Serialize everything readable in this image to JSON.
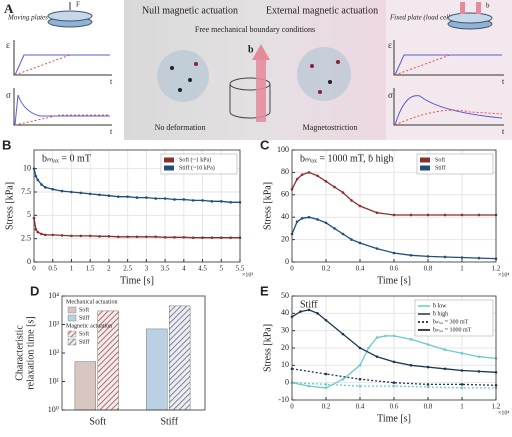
{
  "panel_a": {
    "label": "A",
    "left_caption": "Moving plates",
    "left_axes": [
      {
        "y": "ε",
        "x": "t"
      },
      {
        "y": "σ",
        "x": "t"
      }
    ],
    "null_title": "Null magnetic actuation",
    "external_title": "External magnetic actuation",
    "subtitle": "Free mechanical boundary conditions",
    "field_label": "b",
    "left_state": "No deformation",
    "right_state": "Magnetostriction",
    "right_caption": "Fixed plate (load cell)",
    "right_axes": [
      {
        "y": "ε",
        "x": "t"
      },
      {
        "y": "σ",
        "x": "t"
      }
    ],
    "force_label": "F",
    "icon_field_label": "b"
  },
  "chart_data": [
    {
      "type": "line",
      "panel_label": "B",
      "title": "bₘₐₓ = 0 mT",
      "x_label": "Time [s]",
      "y_label": "Stress [kPa]",
      "x_multiplier": "×10³",
      "xlim": [
        0,
        5.5
      ],
      "xticks": [
        0,
        0.5,
        1,
        1.5,
        2,
        2.5,
        3,
        3.5,
        4,
        4.5,
        5,
        5.5
      ],
      "ylim": [
        0,
        12
      ],
      "yticks": [
        0,
        2.5,
        5,
        7.5,
        10
      ],
      "grid": true,
      "series": [
        {
          "name": "Soft (~1 kPa)",
          "color": "#8b2f2f",
          "x": [
            0,
            0.05,
            0.1,
            0.2,
            0.3,
            0.5,
            0.75,
            1,
            1.25,
            1.5,
            1.75,
            2,
            2.25,
            2.5,
            2.75,
            3,
            3.25,
            3.5,
            3.75,
            4,
            4.25,
            4.5,
            4.75,
            5,
            5.25,
            5.5
          ],
          "values": [
            4.7,
            3.5,
            3.2,
            3,
            2.9,
            2.9,
            2.85,
            2.8,
            2.8,
            2.8,
            2.75,
            2.75,
            2.7,
            2.7,
            2.7,
            2.7,
            2.7,
            2.65,
            2.65,
            2.65,
            2.6,
            2.6,
            2.6,
            2.6,
            2.6,
            2.6
          ]
        },
        {
          "name": "Stiff (~10 kPa)",
          "color": "#1f4f7a",
          "x": [
            0,
            0.05,
            0.1,
            0.2,
            0.3,
            0.5,
            0.75,
            1,
            1.25,
            1.5,
            1.75,
            2,
            2.25,
            2.5,
            2.75,
            3,
            3.25,
            3.5,
            3.75,
            4,
            4.25,
            4.5,
            4.75,
            5,
            5.25,
            5.5
          ],
          "values": [
            10,
            9.2,
            8.8,
            8.3,
            8,
            7.8,
            7.6,
            7.5,
            7.4,
            7.3,
            7.2,
            7.1,
            7,
            7,
            6.9,
            6.9,
            6.8,
            6.8,
            6.7,
            6.7,
            6.6,
            6.6,
            6.5,
            6.5,
            6.4,
            6.4
          ]
        }
      ]
    },
    {
      "type": "line",
      "panel_label": "C",
      "title": "bₘₐₓ = 1000 mT, ḃ high",
      "x_label": "Time [s]",
      "y_label": "Stress [kPa]",
      "x_multiplier": "×10⁴",
      "xlim": [
        0,
        1.2
      ],
      "xticks": [
        0,
        0.2,
        0.4,
        0.6,
        0.8,
        1,
        1.2
      ],
      "ylim": [
        0,
        100
      ],
      "yticks": [
        0,
        20,
        40,
        60,
        80,
        100
      ],
      "grid": true,
      "series": [
        {
          "name": "Soft",
          "color": "#8b2f2f",
          "x": [
            0,
            0.03,
            0.06,
            0.1,
            0.15,
            0.2,
            0.25,
            0.3,
            0.35,
            0.4,
            0.5,
            0.6,
            0.7,
            0.8,
            0.9,
            1,
            1.1,
            1.2
          ],
          "values": [
            65,
            74,
            78,
            80,
            77,
            72,
            67,
            62,
            55,
            50,
            44,
            42,
            42,
            42,
            42,
            42,
            42,
            42
          ]
        },
        {
          "name": "Stiff",
          "color": "#1f4f7a",
          "x": [
            0,
            0.03,
            0.06,
            0.1,
            0.15,
            0.2,
            0.25,
            0.3,
            0.35,
            0.4,
            0.5,
            0.6,
            0.7,
            0.8,
            0.9,
            1,
            1.1,
            1.2
          ],
          "values": [
            25,
            36,
            39,
            40,
            38,
            35,
            30,
            25,
            20,
            17,
            12,
            8,
            6,
            5,
            4.5,
            4,
            3.5,
            3
          ]
        }
      ]
    },
    {
      "type": "bar",
      "panel_label": "D",
      "y_label": [
        "Characteristic",
        "relaxation time [s]"
      ],
      "categories": [
        "Soft",
        "Stiff"
      ],
      "log_y": true,
      "ylim": [
        1,
        10000
      ],
      "yticks": [
        {
          "value": 1,
          "label": "10⁰"
        },
        {
          "value": 10,
          "label": "10¹"
        },
        {
          "value": 100,
          "label": "10²"
        },
        {
          "value": 1000,
          "label": "10³"
        },
        {
          "value": 10000,
          "label": "10⁴"
        }
      ],
      "series": [
        {
          "hatch": false,
          "colors": [
            "#d8c6c0",
            "#b9d1e2"
          ],
          "values": [
            50,
            700
          ]
        },
        {
          "hatch": true,
          "colors": [
            "#a34a4a",
            "#4a6f9a"
          ],
          "values": [
            3000,
            4500
          ]
        }
      ],
      "legend_groups": [
        {
          "title": "Mechanical actuation",
          "items": [
            "Soft",
            "Stiff"
          ]
        },
        {
          "title": "Magnetic actuation",
          "items": [
            "Soft",
            "Stiff"
          ]
        }
      ]
    },
    {
      "type": "line",
      "panel_label": "E",
      "title": "Stiff",
      "x_label": "Time [s]",
      "y_label": "Stress [kPa]",
      "x_multiplier": "×10⁴",
      "xlim": [
        0,
        1.2
      ],
      "xticks": [
        0,
        0.2,
        0.4,
        0.6,
        0.8,
        1,
        1.2
      ],
      "ylim": [
        -10,
        50
      ],
      "yticks": [
        -10,
        0,
        10,
        20,
        30,
        40,
        50
      ],
      "grid": true,
      "series": [
        {
          "color": "#6cc9cc",
          "x": [
            0,
            0.1,
            0.2,
            0.3,
            0.4,
            0.45,
            0.5,
            0.55,
            0.6,
            0.7,
            0.8,
            0.9,
            1,
            1.1,
            1.2
          ],
          "values": [
            0,
            -2,
            -3,
            2,
            10,
            20,
            26,
            27,
            27,
            25,
            22,
            19,
            17,
            15,
            14
          ]
        },
        {
          "color": "#1c3550",
          "x": [
            0,
            0.05,
            0.1,
            0.15,
            0.2,
            0.3,
            0.4,
            0.5,
            0.6,
            0.7,
            0.8,
            0.9,
            1,
            1.1,
            1.2
          ],
          "values": [
            38,
            41,
            42,
            40,
            36,
            28,
            20,
            15,
            12,
            10,
            9,
            8,
            7,
            6.5,
            6
          ]
        },
        {
          "color": "#6cc9cc",
          "dash": "2 2",
          "x": [
            0,
            0.2,
            0.4,
            0.6,
            0.8,
            1,
            1.2
          ],
          "values": [
            0,
            -1,
            -2,
            -2,
            -2.5,
            -3,
            -3
          ]
        },
        {
          "color": "#1c3550",
          "dash": "2 2",
          "x": [
            0,
            0.2,
            0.4,
            0.6,
            0.8,
            1,
            1.2
          ],
          "values": [
            8,
            5,
            2,
            0,
            -1,
            -1,
            -1.5
          ]
        }
      ],
      "legend": [
        {
          "label": "ḃ low",
          "color": "#6cc9cc"
        },
        {
          "label": "ḃ high",
          "color": "#1c3550"
        },
        {
          "label": "bₘₐₓ = 300 mT",
          "color": "#000000",
          "dash": "2 2"
        },
        {
          "label": "bₘₐₓ = 1000 mT",
          "color": "#000000"
        }
      ]
    }
  ]
}
